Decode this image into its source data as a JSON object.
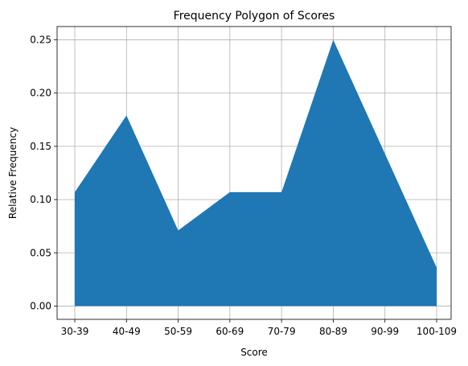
{
  "chart_data": {
    "type": "area",
    "title": "Frequency Polygon of Scores",
    "xlabel": "Score",
    "ylabel": "Relative Frequency",
    "categories": [
      "30-39",
      "40-49",
      "50-59",
      "60-69",
      "70-79",
      "80-89",
      "90-99",
      "100-109"
    ],
    "values": [
      0.107,
      0.179,
      0.071,
      0.107,
      0.107,
      0.25,
      0.143,
      0.036
    ],
    "ylim": [
      -0.0125,
      0.2625
    ],
    "yticks": [
      0.0,
      0.05,
      0.1,
      0.15,
      0.2,
      0.25
    ],
    "ytick_labels": [
      "0.00",
      "0.05",
      "0.10",
      "0.15",
      "0.20",
      "0.25"
    ],
    "grid": true,
    "fill_color": "#1f77b4"
  }
}
